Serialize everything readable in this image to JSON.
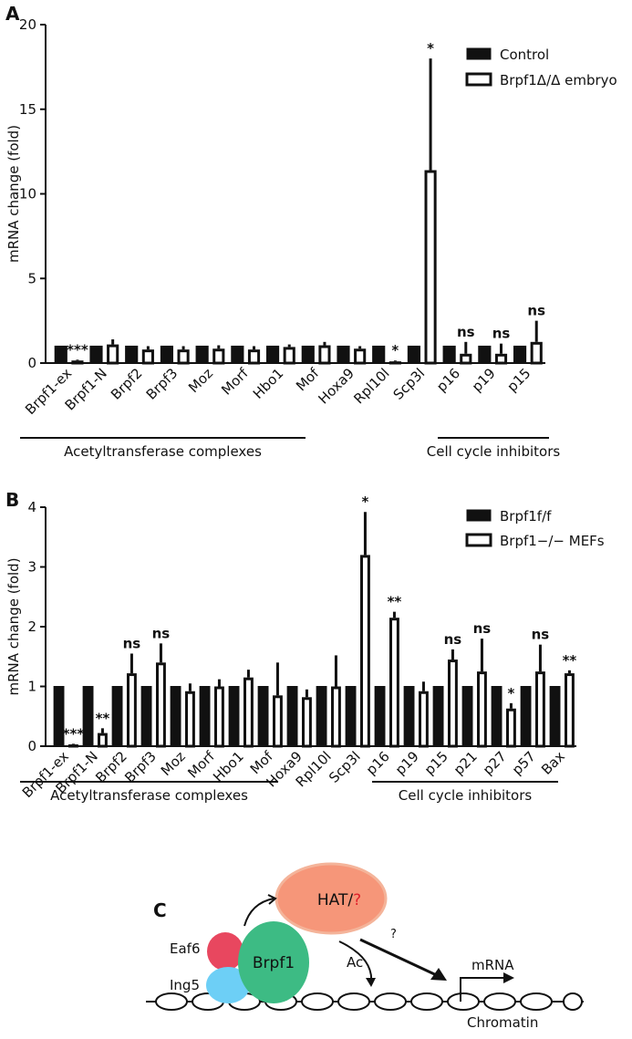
{
  "chart_data": [
    {
      "type": "bar",
      "panel": "A",
      "ylabel": "mRNA change (fold)",
      "categories": [
        "Brpf1-ex",
        "Brpf1-N",
        "Brpf2",
        "Brpf3",
        "Moz",
        "Morf",
        "Hbo1",
        "Mof",
        "Hoxa9",
        "Rpl10l",
        "Scp3l",
        "p16",
        "p19",
        "p15"
      ],
      "series": [
        {
          "name": "Control",
          "color": "#111111",
          "values": [
            1,
            1,
            1,
            1,
            1,
            1,
            1,
            1,
            1,
            1,
            1,
            1,
            1,
            1
          ]
        },
        {
          "name": "Brpf1Δ/Δ embryo",
          "color": "#ffffff",
          "values": [
            0.15,
            1.1,
            0.8,
            0.8,
            0.85,
            0.8,
            0.95,
            1.05,
            0.85,
            0.1,
            11.4,
            0.55,
            0.55,
            1.25
          ],
          "errors": [
            0.05,
            0.3,
            0.2,
            0.2,
            0.2,
            0.2,
            0.15,
            0.2,
            0.15,
            0.05,
            6.6,
            0.7,
            0.6,
            1.25
          ]
        }
      ],
      "annotations": [
        "***",
        null,
        null,
        null,
        null,
        null,
        null,
        null,
        null,
        "*",
        "*",
        "ns",
        "ns",
        "ns"
      ],
      "groups": [
        "Acetyltransferase complexes",
        "Cell cycle inhibitors"
      ],
      "ylim": [
        0,
        20
      ],
      "yticks": [
        0,
        5,
        10,
        15,
        20
      ],
      "grid": false,
      "legend": "top-right"
    },
    {
      "type": "bar",
      "panel": "B",
      "ylabel": "mRNA change (fold)",
      "categories": [
        "Brpf1-ex",
        "Brpf1-N",
        "Brpf2",
        "Brpf3",
        "Moz",
        "Morf",
        "Hbo1",
        "Mof",
        "Hoxa9",
        "Rpl10l",
        "Scp3l",
        "p16",
        "p19",
        "p15",
        "p21",
        "p27",
        "p57",
        "Bax"
      ],
      "series": [
        {
          "name": "Brpf1f/f",
          "color": "#111111",
          "values": [
            1,
            1,
            1,
            1,
            1,
            1,
            1,
            1,
            1,
            1,
            1,
            1,
            1,
            1,
            1,
            1,
            1,
            1
          ]
        },
        {
          "name": "Brpf1−/− MEFs",
          "color": "#ffffff",
          "values": [
            0.03,
            0.22,
            1.22,
            1.4,
            0.92,
            1.0,
            1.15,
            0.85,
            0.82,
            1.0,
            3.2,
            2.15,
            0.92,
            1.45,
            1.25,
            0.63,
            1.25,
            1.22
          ],
          "errors": [
            0.01,
            0.08,
            0.33,
            0.32,
            0.13,
            0.12,
            0.13,
            0.55,
            0.13,
            0.52,
            0.72,
            0.1,
            0.16,
            0.17,
            0.55,
            0.09,
            0.45,
            0.05
          ]
        }
      ],
      "annotations": [
        "***",
        "**",
        "ns",
        "ns",
        null,
        null,
        null,
        null,
        null,
        null,
        "*",
        "**",
        null,
        "ns",
        "ns",
        "*",
        "ns",
        "**"
      ],
      "groups": [
        "Acetyltransferase complexes",
        "Cell cycle inhibitors"
      ],
      "ylim": [
        0,
        4
      ],
      "yticks": [
        0,
        1,
        2,
        3,
        4
      ],
      "grid": false,
      "legend": "top-right"
    }
  ],
  "diagram": {
    "panel": "C",
    "hat": "HAT/",
    "hat_unknown": "?",
    "eaf6": "Eaf6",
    "ing5": "Ing5",
    "brpf1": "Brpf1",
    "ac": "Ac",
    "unknown": "?",
    "mrna": "mRNA",
    "chromatin": "Chromatin"
  }
}
